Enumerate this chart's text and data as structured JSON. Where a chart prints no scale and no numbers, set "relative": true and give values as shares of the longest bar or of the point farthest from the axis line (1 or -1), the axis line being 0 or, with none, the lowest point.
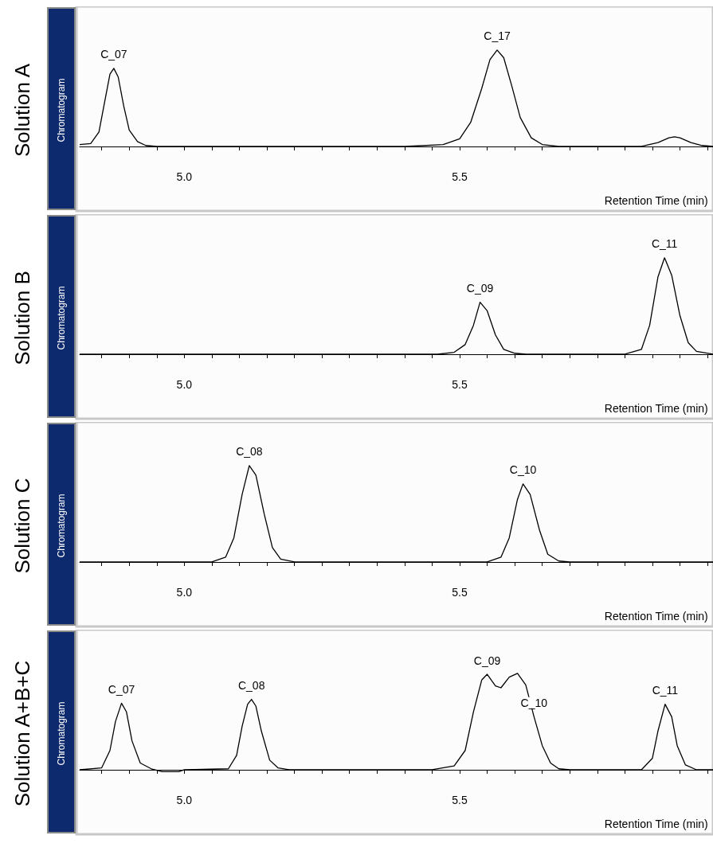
{
  "chart_data": [
    {
      "type": "line",
      "ylabel": "Solution A",
      "xlabel": "Retention Time (min)",
      "relative": true,
      "marker": "none",
      "line_style": "solid",
      "tick_labels": "x",
      "xlim": [
        4.81,
        5.96
      ],
      "xticks": [
        {
          "value": 4.85,
          "label": null
        },
        {
          "value": 4.9,
          "label": null
        },
        {
          "value": 4.95,
          "label": null
        },
        {
          "value": 5,
          "label": "5.0"
        },
        {
          "value": 5.05,
          "label": null
        },
        {
          "value": 5.1,
          "label": null
        },
        {
          "value": 5.15,
          "label": null
        },
        {
          "value": 5.2,
          "label": null
        },
        {
          "value": 5.25,
          "label": null
        },
        {
          "value": 5.3,
          "label": null
        },
        {
          "value": 5.35,
          "label": null
        },
        {
          "value": 5.4,
          "label": null
        },
        {
          "value": 5.45,
          "label": null
        },
        {
          "value": 5.5,
          "label": "5.5"
        },
        {
          "value": 5.55,
          "label": null
        },
        {
          "value": 5.6,
          "label": null
        },
        {
          "value": 5.65,
          "label": null
        },
        {
          "value": 5.7,
          "label": null
        },
        {
          "value": 5.75,
          "label": null
        },
        {
          "value": 5.8,
          "label": null
        },
        {
          "value": 5.85,
          "label": null
        },
        {
          "value": 5.9,
          "label": null
        },
        {
          "value": 5.95,
          "label": null
        }
      ],
      "annotations": [
        "Chromatogram",
        {
          "text": "C_07",
          "x": 4.872,
          "y": 0.81
        },
        {
          "text": "C_17",
          "x": 5.568,
          "y": 1
        }
      ],
      "series": [
        {
          "color": "#000000",
          "x": [
            4.81,
            4.83,
            4.845,
            4.855,
            4.865,
            4.872,
            4.88,
            4.89,
            4.9,
            4.915,
            4.93,
            4.95,
            5.4,
            5.47,
            5.5,
            5.52,
            5.54,
            5.555,
            5.568,
            5.58,
            5.595,
            5.61,
            5.63,
            5.65,
            5.68,
            5.83,
            5.86,
            5.88,
            5.89,
            5.9,
            5.92,
            5.94,
            5.96
          ],
          "values": [
            0.02,
            0.03,
            0.15,
            0.45,
            0.75,
            0.81,
            0.72,
            0.42,
            0.17,
            0.05,
            0.01,
            0,
            0,
            0.02,
            0.08,
            0.25,
            0.6,
            0.9,
            1,
            0.92,
            0.62,
            0.3,
            0.09,
            0.02,
            0,
            0,
            0.04,
            0.09,
            0.1,
            0.09,
            0.04,
            0.01,
            0
          ]
        }
      ]
    },
    {
      "type": "line",
      "ylabel": "Solution B",
      "xlabel": "Retention Time (min)",
      "relative": true,
      "marker": "none",
      "line_style": "solid",
      "tick_labels": "x",
      "xlim": [
        4.81,
        5.96
      ],
      "xticks": [
        {
          "value": 4.85,
          "label": null
        },
        {
          "value": 4.9,
          "label": null
        },
        {
          "value": 4.95,
          "label": null
        },
        {
          "value": 5,
          "label": "5.0"
        },
        {
          "value": 5.05,
          "label": null
        },
        {
          "value": 5.1,
          "label": null
        },
        {
          "value": 5.15,
          "label": null
        },
        {
          "value": 5.2,
          "label": null
        },
        {
          "value": 5.25,
          "label": null
        },
        {
          "value": 5.3,
          "label": null
        },
        {
          "value": 5.35,
          "label": null
        },
        {
          "value": 5.4,
          "label": null
        },
        {
          "value": 5.45,
          "label": null
        },
        {
          "value": 5.5,
          "label": "5.5"
        },
        {
          "value": 5.55,
          "label": null
        },
        {
          "value": 5.6,
          "label": null
        },
        {
          "value": 5.65,
          "label": null
        },
        {
          "value": 5.7,
          "label": null
        },
        {
          "value": 5.75,
          "label": null
        },
        {
          "value": 5.8,
          "label": null
        },
        {
          "value": 5.85,
          "label": null
        },
        {
          "value": 5.9,
          "label": null
        },
        {
          "value": 5.95,
          "label": null
        }
      ],
      "annotations": [
        "Chromatogram",
        {
          "text": "C_09",
          "x": 5.537,
          "y": 0.54
        },
        {
          "text": "C_11",
          "x": 5.872,
          "y": 1
        }
      ],
      "series": [
        {
          "color": "#000000",
          "x": [
            4.81,
            5.46,
            5.49,
            5.51,
            5.525,
            5.537,
            5.55,
            5.565,
            5.58,
            5.6,
            5.62,
            5.8,
            5.83,
            5.845,
            5.86,
            5.872,
            5.885,
            5.9,
            5.915,
            5.93,
            5.96
          ],
          "values": [
            0,
            0,
            0.02,
            0.1,
            0.3,
            0.54,
            0.45,
            0.2,
            0.05,
            0.01,
            0,
            0,
            0.05,
            0.3,
            0.8,
            1,
            0.82,
            0.4,
            0.12,
            0.03,
            0
          ]
        }
      ]
    },
    {
      "type": "line",
      "ylabel": "Solution C",
      "xlabel": "Retention Time (min)",
      "relative": true,
      "marker": "none",
      "line_style": "solid",
      "tick_labels": "x",
      "xlim": [
        4.81,
        5.96
      ],
      "xticks": [
        {
          "value": 4.85,
          "label": null
        },
        {
          "value": 4.9,
          "label": null
        },
        {
          "value": 4.95,
          "label": null
        },
        {
          "value": 5,
          "label": "5.0"
        },
        {
          "value": 5.05,
          "label": null
        },
        {
          "value": 5.1,
          "label": null
        },
        {
          "value": 5.15,
          "label": null
        },
        {
          "value": 5.2,
          "label": null
        },
        {
          "value": 5.25,
          "label": null
        },
        {
          "value": 5.3,
          "label": null
        },
        {
          "value": 5.35,
          "label": null
        },
        {
          "value": 5.4,
          "label": null
        },
        {
          "value": 5.45,
          "label": null
        },
        {
          "value": 5.5,
          "label": "5.5"
        },
        {
          "value": 5.55,
          "label": null
        },
        {
          "value": 5.6,
          "label": null
        },
        {
          "value": 5.65,
          "label": null
        },
        {
          "value": 5.7,
          "label": null
        },
        {
          "value": 5.75,
          "label": null
        },
        {
          "value": 5.8,
          "label": null
        },
        {
          "value": 5.85,
          "label": null
        },
        {
          "value": 5.9,
          "label": null
        },
        {
          "value": 5.95,
          "label": null
        }
      ],
      "annotations": [
        "Chromatogram",
        {
          "text": "C_08",
          "x": 5.118,
          "y": 1
        },
        {
          "text": "C_10",
          "x": 5.615,
          "y": 0.81
        }
      ],
      "series": [
        {
          "color": "#000000",
          "x": [
            4.81,
            5.05,
            5.075,
            5.09,
            5.105,
            5.118,
            5.13,
            5.145,
            5.16,
            5.175,
            5.2,
            5.55,
            5.575,
            5.59,
            5.605,
            5.615,
            5.628,
            5.645,
            5.66,
            5.68,
            5.7,
            5.96
          ],
          "values": [
            0,
            0,
            0.05,
            0.25,
            0.7,
            1,
            0.9,
            0.5,
            0.15,
            0.03,
            0,
            0,
            0.05,
            0.25,
            0.65,
            0.81,
            0.7,
            0.33,
            0.08,
            0.01,
            0,
            0
          ]
        }
      ]
    },
    {
      "type": "line",
      "ylabel": "Solution A+B+C",
      "xlabel": "Retention Time (min)",
      "relative": true,
      "marker": "none",
      "line_style": "solid",
      "tick_labels": "x",
      "xlim": [
        4.81,
        5.96
      ],
      "xticks": [
        {
          "value": 4.85,
          "label": null
        },
        {
          "value": 4.9,
          "label": null
        },
        {
          "value": 4.95,
          "label": null
        },
        {
          "value": 5,
          "label": "5.0"
        },
        {
          "value": 5.05,
          "label": null
        },
        {
          "value": 5.1,
          "label": null
        },
        {
          "value": 5.15,
          "label": null
        },
        {
          "value": 5.2,
          "label": null
        },
        {
          "value": 5.25,
          "label": null
        },
        {
          "value": 5.3,
          "label": null
        },
        {
          "value": 5.35,
          "label": null
        },
        {
          "value": 5.4,
          "label": null
        },
        {
          "value": 5.45,
          "label": null
        },
        {
          "value": 5.5,
          "label": "5.5"
        },
        {
          "value": 5.55,
          "label": null
        },
        {
          "value": 5.6,
          "label": null
        },
        {
          "value": 5.65,
          "label": null
        },
        {
          "value": 5.7,
          "label": null
        },
        {
          "value": 5.75,
          "label": null
        },
        {
          "value": 5.8,
          "label": null
        },
        {
          "value": 5.85,
          "label": null
        },
        {
          "value": 5.9,
          "label": null
        },
        {
          "value": 5.95,
          "label": null
        }
      ],
      "annotations": [
        "Chromatogram",
        {
          "text": "C_07",
          "x": 4.886,
          "y": 0.69
        },
        {
          "text": "C_08",
          "x": 5.122,
          "y": 0.73
        },
        {
          "text": "C_09",
          "x": 5.55,
          "y": 0.99
        },
        {
          "text": "C_10",
          "x": 5.635,
          "y": 0.55
        },
        {
          "text": "C_11",
          "x": 5.873,
          "y": 0.68
        }
      ],
      "series": [
        {
          "color": "#000000",
          "x": [
            4.81,
            4.85,
            4.865,
            4.875,
            4.886,
            4.895,
            4.905,
            4.92,
            4.94,
            4.96,
            4.99,
            5.0,
            5.08,
            5.095,
            5.105,
            5.115,
            5.122,
            5.13,
            5.14,
            5.155,
            5.17,
            5.19,
            5.45,
            5.49,
            5.51,
            5.525,
            5.54,
            5.55,
            5.565,
            5.575,
            5.59,
            5.605,
            5.62,
            5.635,
            5.65,
            5.665,
            5.68,
            5.7,
            5.83,
            5.85,
            5.86,
            5.873,
            5.885,
            5.895,
            5.91,
            5.93,
            5.96
          ],
          "values": [
            0,
            0.02,
            0.2,
            0.5,
            0.69,
            0.6,
            0.3,
            0.07,
            0.01,
            -0.02,
            -0.02,
            0,
            0.01,
            0.15,
            0.45,
            0.68,
            0.73,
            0.66,
            0.4,
            0.1,
            0.02,
            0,
            0,
            0.04,
            0.2,
            0.6,
            0.93,
            0.99,
            0.87,
            0.85,
            0.96,
            1,
            0.88,
            0.55,
            0.25,
            0.07,
            0.01,
            0,
            0,
            0.12,
            0.4,
            0.68,
            0.55,
            0.25,
            0.05,
            0,
            0
          ]
        }
      ]
    }
  ]
}
